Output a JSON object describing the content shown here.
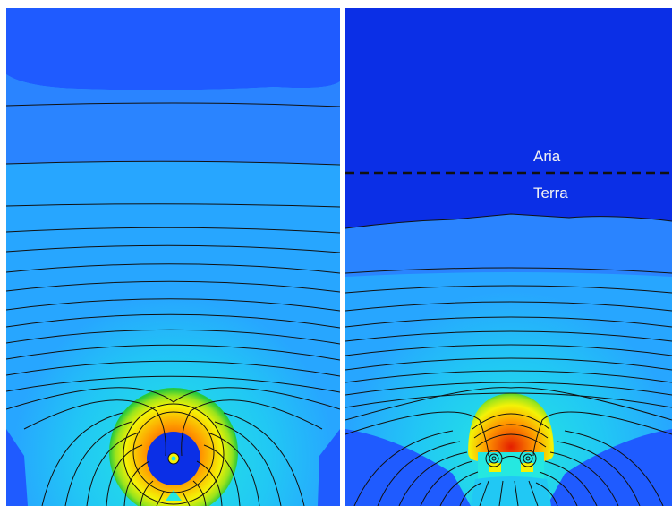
{
  "panels": {
    "left": {},
    "right": {
      "labels": {
        "air": "Aria",
        "ground": "Terra"
      }
    }
  },
  "colors": {
    "deep_blue": "#0b2fe6",
    "blue": "#1f5bff",
    "mid_blue": "#2a84ff",
    "light_blue": "#27a6ff",
    "cyan": "#21c8f4",
    "aqua": "#25e8e0",
    "green": "#28c93c",
    "yellow": "#f4f206",
    "orange": "#ff9a00",
    "red": "#e41e00",
    "contour": "#111111",
    "divider": "#ffffff"
  }
}
